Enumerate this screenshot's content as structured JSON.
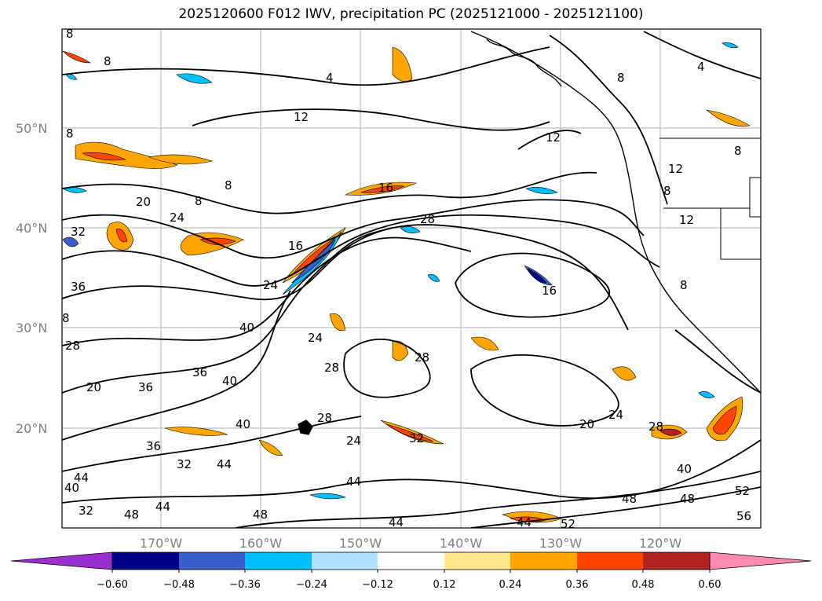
{
  "title": "2025120600 F012 IWV, precipitation PC (2025121000 - 2025121100)",
  "lat_labels": [
    "50°N",
    "40°N",
    "30°N",
    "20°N"
  ],
  "lon_labels": [
    "170°W",
    "160°W",
    "150°W",
    "140°W",
    "130°W",
    "120°W"
  ],
  "colorbar": {
    "ticks": [
      "−0.60",
      "−0.48",
      "−0.36",
      "−0.24",
      "−0.12",
      "0.12",
      "0.24",
      "0.36",
      "0.48",
      "0.60"
    ],
    "colors": [
      "#9b30d0",
      "#00008b",
      "#3a5fcd",
      "#00bfff",
      "#b0e2ff",
      "#ffffff",
      "#ffe78a",
      "#ffa500",
      "#ff4500",
      "#b22222",
      "#ff89b0"
    ]
  },
  "contour_labels": [
    "8",
    "4",
    "12",
    "16",
    "20",
    "24",
    "28",
    "32",
    "36",
    "40",
    "44",
    "48",
    "52",
    "56"
  ]
}
